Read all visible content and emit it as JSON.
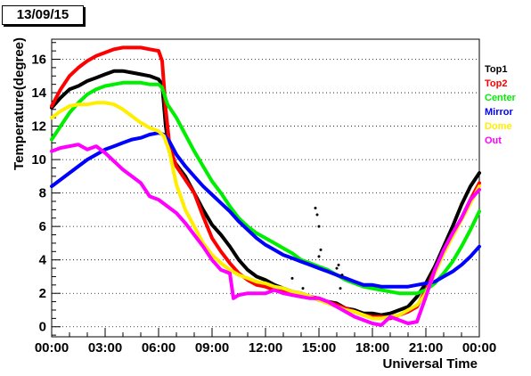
{
  "date_label": "13/09/15",
  "chart_data": {
    "type": "line",
    "title": "",
    "xlabel": "Universal Time",
    "ylabel": "Temperature(degree)",
    "xlim": [
      0,
      24
    ],
    "ylim": [
      -0.6,
      17.2
    ],
    "x_ticks": [
      {
        "value": 0,
        "label": "00:00"
      },
      {
        "value": 3,
        "label": "03:00"
      },
      {
        "value": 6,
        "label": "06:00"
      },
      {
        "value": 9,
        "label": "09:00"
      },
      {
        "value": 12,
        "label": "12:00"
      },
      {
        "value": 15,
        "label": "15:00"
      },
      {
        "value": 18,
        "label": "18:00"
      },
      {
        "value": 21,
        "label": "21:00"
      },
      {
        "value": 24,
        "label": "00:00"
      }
    ],
    "y_ticks": [
      0,
      2,
      4,
      6,
      8,
      10,
      12,
      14,
      16
    ],
    "grid": "dotted horizontal",
    "legend_position": "right",
    "series": [
      {
        "name": "Top1",
        "color": "#000000",
        "x": [
          0,
          0.5,
          1,
          1.5,
          2,
          2.5,
          3,
          3.5,
          4,
          4.5,
          5,
          5.5,
          6,
          6.2,
          6.4,
          6.6,
          6.8,
          7,
          7.5,
          8,
          8.5,
          9,
          9.5,
          10,
          10.5,
          11,
          11.5,
          12,
          12.5,
          13,
          13.5,
          14,
          14.5,
          15,
          15.5,
          16,
          16.5,
          17,
          17.5,
          18,
          18.5,
          19,
          19.5,
          20,
          20.5,
          21,
          21.5,
          22,
          22.5,
          23,
          23.5,
          24
        ],
        "y": [
          13.1,
          13.7,
          14.2,
          14.4,
          14.7,
          14.9,
          15.1,
          15.3,
          15.3,
          15.2,
          15.1,
          15.0,
          14.8,
          14.5,
          12.0,
          10.5,
          10.0,
          9.7,
          9.0,
          8.0,
          7.0,
          6.1,
          5.5,
          4.8,
          4.0,
          3.4,
          3.0,
          2.8,
          2.5,
          2.3,
          2.1,
          2.0,
          1.8,
          1.6,
          1.5,
          1.4,
          1.1,
          1.0,
          0.8,
          0.8,
          0.7,
          0.8,
          1.0,
          1.2,
          1.8,
          2.6,
          3.6,
          4.8,
          6.0,
          7.3,
          8.4,
          9.2
        ]
      },
      {
        "name": "Top2",
        "color": "#ff0000",
        "x": [
          0,
          0.5,
          1,
          1.5,
          2,
          2.5,
          3,
          3.5,
          4,
          4.5,
          5,
          5.5,
          6,
          6.2,
          6.4,
          6.6,
          6.8,
          7,
          7.5,
          8,
          8.5,
          9,
          9.5,
          10,
          10.5,
          11,
          11.5,
          12,
          12.5,
          13,
          13.5,
          14,
          14.5,
          15,
          15.5,
          16,
          16.5,
          17,
          17.5,
          18,
          18.5,
          19,
          19.5,
          20,
          20.5,
          21,
          21.5,
          22,
          22.5,
          23,
          23.5,
          24
        ],
        "y": [
          13.2,
          14.2,
          15.0,
          15.5,
          15.9,
          16.2,
          16.4,
          16.6,
          16.7,
          16.7,
          16.7,
          16.6,
          16.5,
          15.9,
          13.0,
          11.0,
          10.2,
          9.6,
          8.8,
          8.0,
          6.6,
          5.3,
          4.5,
          3.8,
          3.2,
          2.8,
          2.5,
          2.4,
          2.2,
          2.1,
          2.0,
          1.9,
          1.8,
          1.7,
          1.5,
          1.3,
          1.1,
          0.9,
          0.7,
          0.6,
          0.6,
          0.5,
          0.7,
          0.9,
          1.2,
          2.2,
          3.4,
          4.5,
          5.5,
          6.5,
          7.6,
          8.6
        ]
      },
      {
        "name": "Center",
        "color": "#00ee00",
        "x": [
          0,
          0.5,
          1,
          1.5,
          2,
          2.5,
          3,
          3.5,
          4,
          4.5,
          5,
          5.5,
          6,
          6.2,
          6.5,
          7,
          7.5,
          8,
          8.5,
          9,
          9.5,
          10,
          10.5,
          11,
          11.5,
          12,
          12.5,
          13,
          13.5,
          14,
          14.5,
          15,
          15.5,
          16,
          16.5,
          17,
          17.5,
          18,
          18.5,
          19,
          19.5,
          20,
          20.5,
          21,
          21.5,
          22,
          22.5,
          23,
          23.5,
          24
        ],
        "y": [
          11.2,
          12.0,
          12.8,
          13.4,
          13.9,
          14.2,
          14.4,
          14.5,
          14.6,
          14.6,
          14.6,
          14.5,
          14.5,
          14.3,
          13.3,
          12.5,
          11.5,
          10.5,
          9.6,
          8.7,
          8.0,
          7.2,
          6.5,
          6.0,
          5.6,
          5.3,
          5.0,
          4.7,
          4.4,
          4.0,
          3.8,
          3.6,
          3.4,
          3.1,
          2.8,
          2.6,
          2.4,
          2.3,
          2.2,
          2.1,
          2.0,
          2.0,
          2.0,
          2.2,
          2.6,
          3.2,
          3.9,
          4.8,
          5.8,
          6.9
        ]
      },
      {
        "name": "Mirror",
        "color": "#0000ff",
        "x": [
          0,
          0.5,
          1,
          1.5,
          2,
          2.5,
          3,
          3.5,
          4,
          4.5,
          5,
          5.5,
          6,
          6.3,
          6.6,
          7,
          7.5,
          8,
          8.5,
          9,
          9.5,
          10,
          10.5,
          11,
          11.5,
          12,
          12.5,
          13,
          13.5,
          14,
          14.5,
          15,
          15.5,
          16,
          16.5,
          17,
          17.5,
          18,
          18.5,
          19,
          19.5,
          20,
          20.5,
          21,
          21.5,
          22,
          22.5,
          23,
          23.5,
          24
        ],
        "y": [
          8.4,
          8.8,
          9.2,
          9.6,
          10.0,
          10.3,
          10.6,
          10.8,
          11.0,
          11.2,
          11.3,
          11.5,
          11.6,
          11.5,
          11.1,
          10.3,
          9.6,
          9.0,
          8.4,
          7.9,
          7.4,
          6.9,
          6.3,
          5.8,
          5.3,
          4.9,
          4.6,
          4.3,
          4.1,
          3.9,
          3.7,
          3.5,
          3.3,
          3.1,
          2.9,
          2.7,
          2.5,
          2.5,
          2.4,
          2.4,
          2.4,
          2.4,
          2.5,
          2.6,
          2.7,
          3.0,
          3.3,
          3.7,
          4.2,
          4.8
        ]
      },
      {
        "name": "Dome",
        "color": "#ffee00",
        "x": [
          0,
          0.5,
          1,
          1.5,
          2,
          2.5,
          3,
          3.5,
          4,
          4.5,
          5,
          5.5,
          6,
          6.3,
          6.6,
          7,
          7.5,
          8,
          8.5,
          9,
          9.5,
          10,
          10.5,
          11,
          11.5,
          12,
          12.5,
          13,
          13.5,
          14,
          14.5,
          15,
          15.5,
          16,
          16.5,
          17,
          17.5,
          18,
          18.5,
          19,
          19.5,
          20,
          20.5,
          21,
          21.5,
          22,
          22.5,
          23,
          23.5,
          24
        ],
        "y": [
          12.5,
          12.9,
          13.2,
          13.3,
          13.3,
          13.4,
          13.4,
          13.3,
          13.0,
          12.6,
          12.2,
          11.9,
          11.7,
          11.4,
          10.5,
          8.5,
          7.0,
          6.0,
          5.0,
          4.3,
          3.8,
          3.4,
          3.1,
          2.9,
          2.7,
          2.6,
          2.4,
          2.3,
          2.1,
          2.0,
          1.8,
          1.6,
          1.4,
          1.2,
          1.0,
          0.9,
          0.7,
          0.5,
          0.5,
          0.6,
          0.7,
          1.0,
          1.3,
          2.0,
          3.2,
          4.4,
          5.4,
          6.4,
          7.4,
          8.4
        ]
      },
      {
        "name": "Out",
        "color": "#ff00ff",
        "x": [
          0,
          0.5,
          1,
          1.5,
          2,
          2.5,
          3,
          3.5,
          4,
          4.5,
          5,
          5.5,
          6,
          6.5,
          7,
          7.5,
          8,
          8.5,
          9,
          9.5,
          10,
          10.2,
          10.5,
          11,
          11.5,
          12,
          12.5,
          13,
          13.5,
          14,
          14.5,
          15,
          15.5,
          16,
          16.5,
          17,
          17.5,
          18,
          18.5,
          19,
          19.5,
          20,
          20.5,
          21,
          21.5,
          22,
          22.5,
          23,
          23.5,
          24
        ],
        "y": [
          10.5,
          10.7,
          10.8,
          10.9,
          10.6,
          10.8,
          10.4,
          9.9,
          9.4,
          9.0,
          8.6,
          7.8,
          7.6,
          7.2,
          6.8,
          6.2,
          5.5,
          4.8,
          4.0,
          3.4,
          3.2,
          1.7,
          1.9,
          2.0,
          2.0,
          2.0,
          2.2,
          2.0,
          1.9,
          1.8,
          1.7,
          1.7,
          1.5,
          1.2,
          0.9,
          0.6,
          0.4,
          0.2,
          0.1,
          0.6,
          0.4,
          0.2,
          0.3,
          1.8,
          3.4,
          4.6,
          5.6,
          6.5,
          7.6,
          8.2
        ]
      }
    ],
    "annotations": [
      {
        "series": "Top1",
        "style": "scattered points",
        "x": [
          13.5,
          14.1,
          14.8,
          14.9,
          15.0,
          15.1,
          15.0,
          16.0,
          16.1,
          16.3,
          16.2
        ],
        "y": [
          2.9,
          2.3,
          7.1,
          6.7,
          6.0,
          4.6,
          4.2,
          3.5,
          3.7,
          3.1,
          2.3
        ]
      }
    ]
  }
}
